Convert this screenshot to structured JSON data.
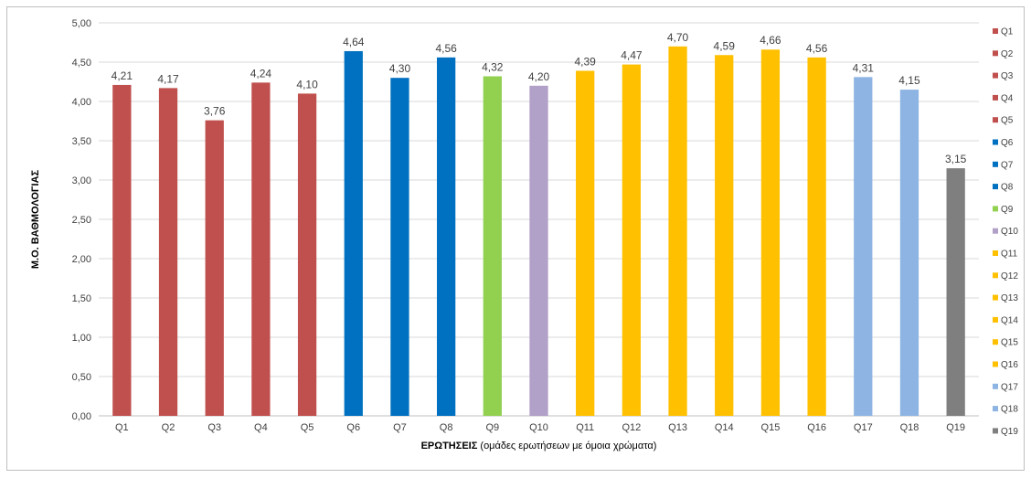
{
  "chart_data": {
    "type": "bar",
    "title": "",
    "xlabel_bold": "ΕΡΩΤΗΣΕΙΣ",
    "xlabel_rest": " (ομάδες ερωτήσεων με όμοια χρώματα)",
    "ylabel": "Μ.Ο. ΒΑΘΜΟΛΟΓΙΑΣ",
    "ylim": [
      0,
      5
    ],
    "ytick_labels": [
      "0,00",
      "0,50",
      "1,00",
      "1,50",
      "2,00",
      "2,50",
      "3,00",
      "3,50",
      "4,00",
      "4,50",
      "5,00"
    ],
    "grid": true,
    "legend_position": "right",
    "categories": [
      "Q1",
      "Q2",
      "Q3",
      "Q4",
      "Q5",
      "Q6",
      "Q7",
      "Q8",
      "Q9",
      "Q10",
      "Q11",
      "Q12",
      "Q13",
      "Q14",
      "Q15",
      "Q16",
      "Q17",
      "Q18",
      "Q19"
    ],
    "values": [
      4.21,
      4.17,
      3.76,
      4.24,
      4.1,
      4.64,
      4.3,
      4.56,
      4.32,
      4.2,
      4.39,
      4.47,
      4.7,
      4.59,
      4.66,
      4.56,
      4.31,
      4.15,
      3.15
    ],
    "value_labels": [
      "4,21",
      "4,17",
      "3,76",
      "4,24",
      "4,10",
      "4,64",
      "4,30",
      "4,56",
      "4,32",
      "4,20",
      "4,39",
      "4,47",
      "4,70",
      "4,59",
      "4,66",
      "4,56",
      "4,31",
      "4,15",
      "3,15"
    ],
    "colors": [
      "#c0504d",
      "#c0504d",
      "#c0504d",
      "#c0504d",
      "#c0504d",
      "#0070c0",
      "#0070c0",
      "#0070c0",
      "#92d050",
      "#b1a0c7",
      "#ffc000",
      "#ffc000",
      "#ffc000",
      "#ffc000",
      "#ffc000",
      "#ffc000",
      "#8db4e2",
      "#8db4e2",
      "#7f7f7f"
    ],
    "legend": [
      "Q1",
      "Q2",
      "Q3",
      "Q4",
      "Q5",
      "Q6",
      "Q7",
      "Q8",
      "Q9",
      "Q10",
      "Q11",
      "Q12",
      "Q13",
      "Q14",
      "Q15",
      "Q16",
      "Q17",
      "Q18",
      "Q19"
    ]
  }
}
